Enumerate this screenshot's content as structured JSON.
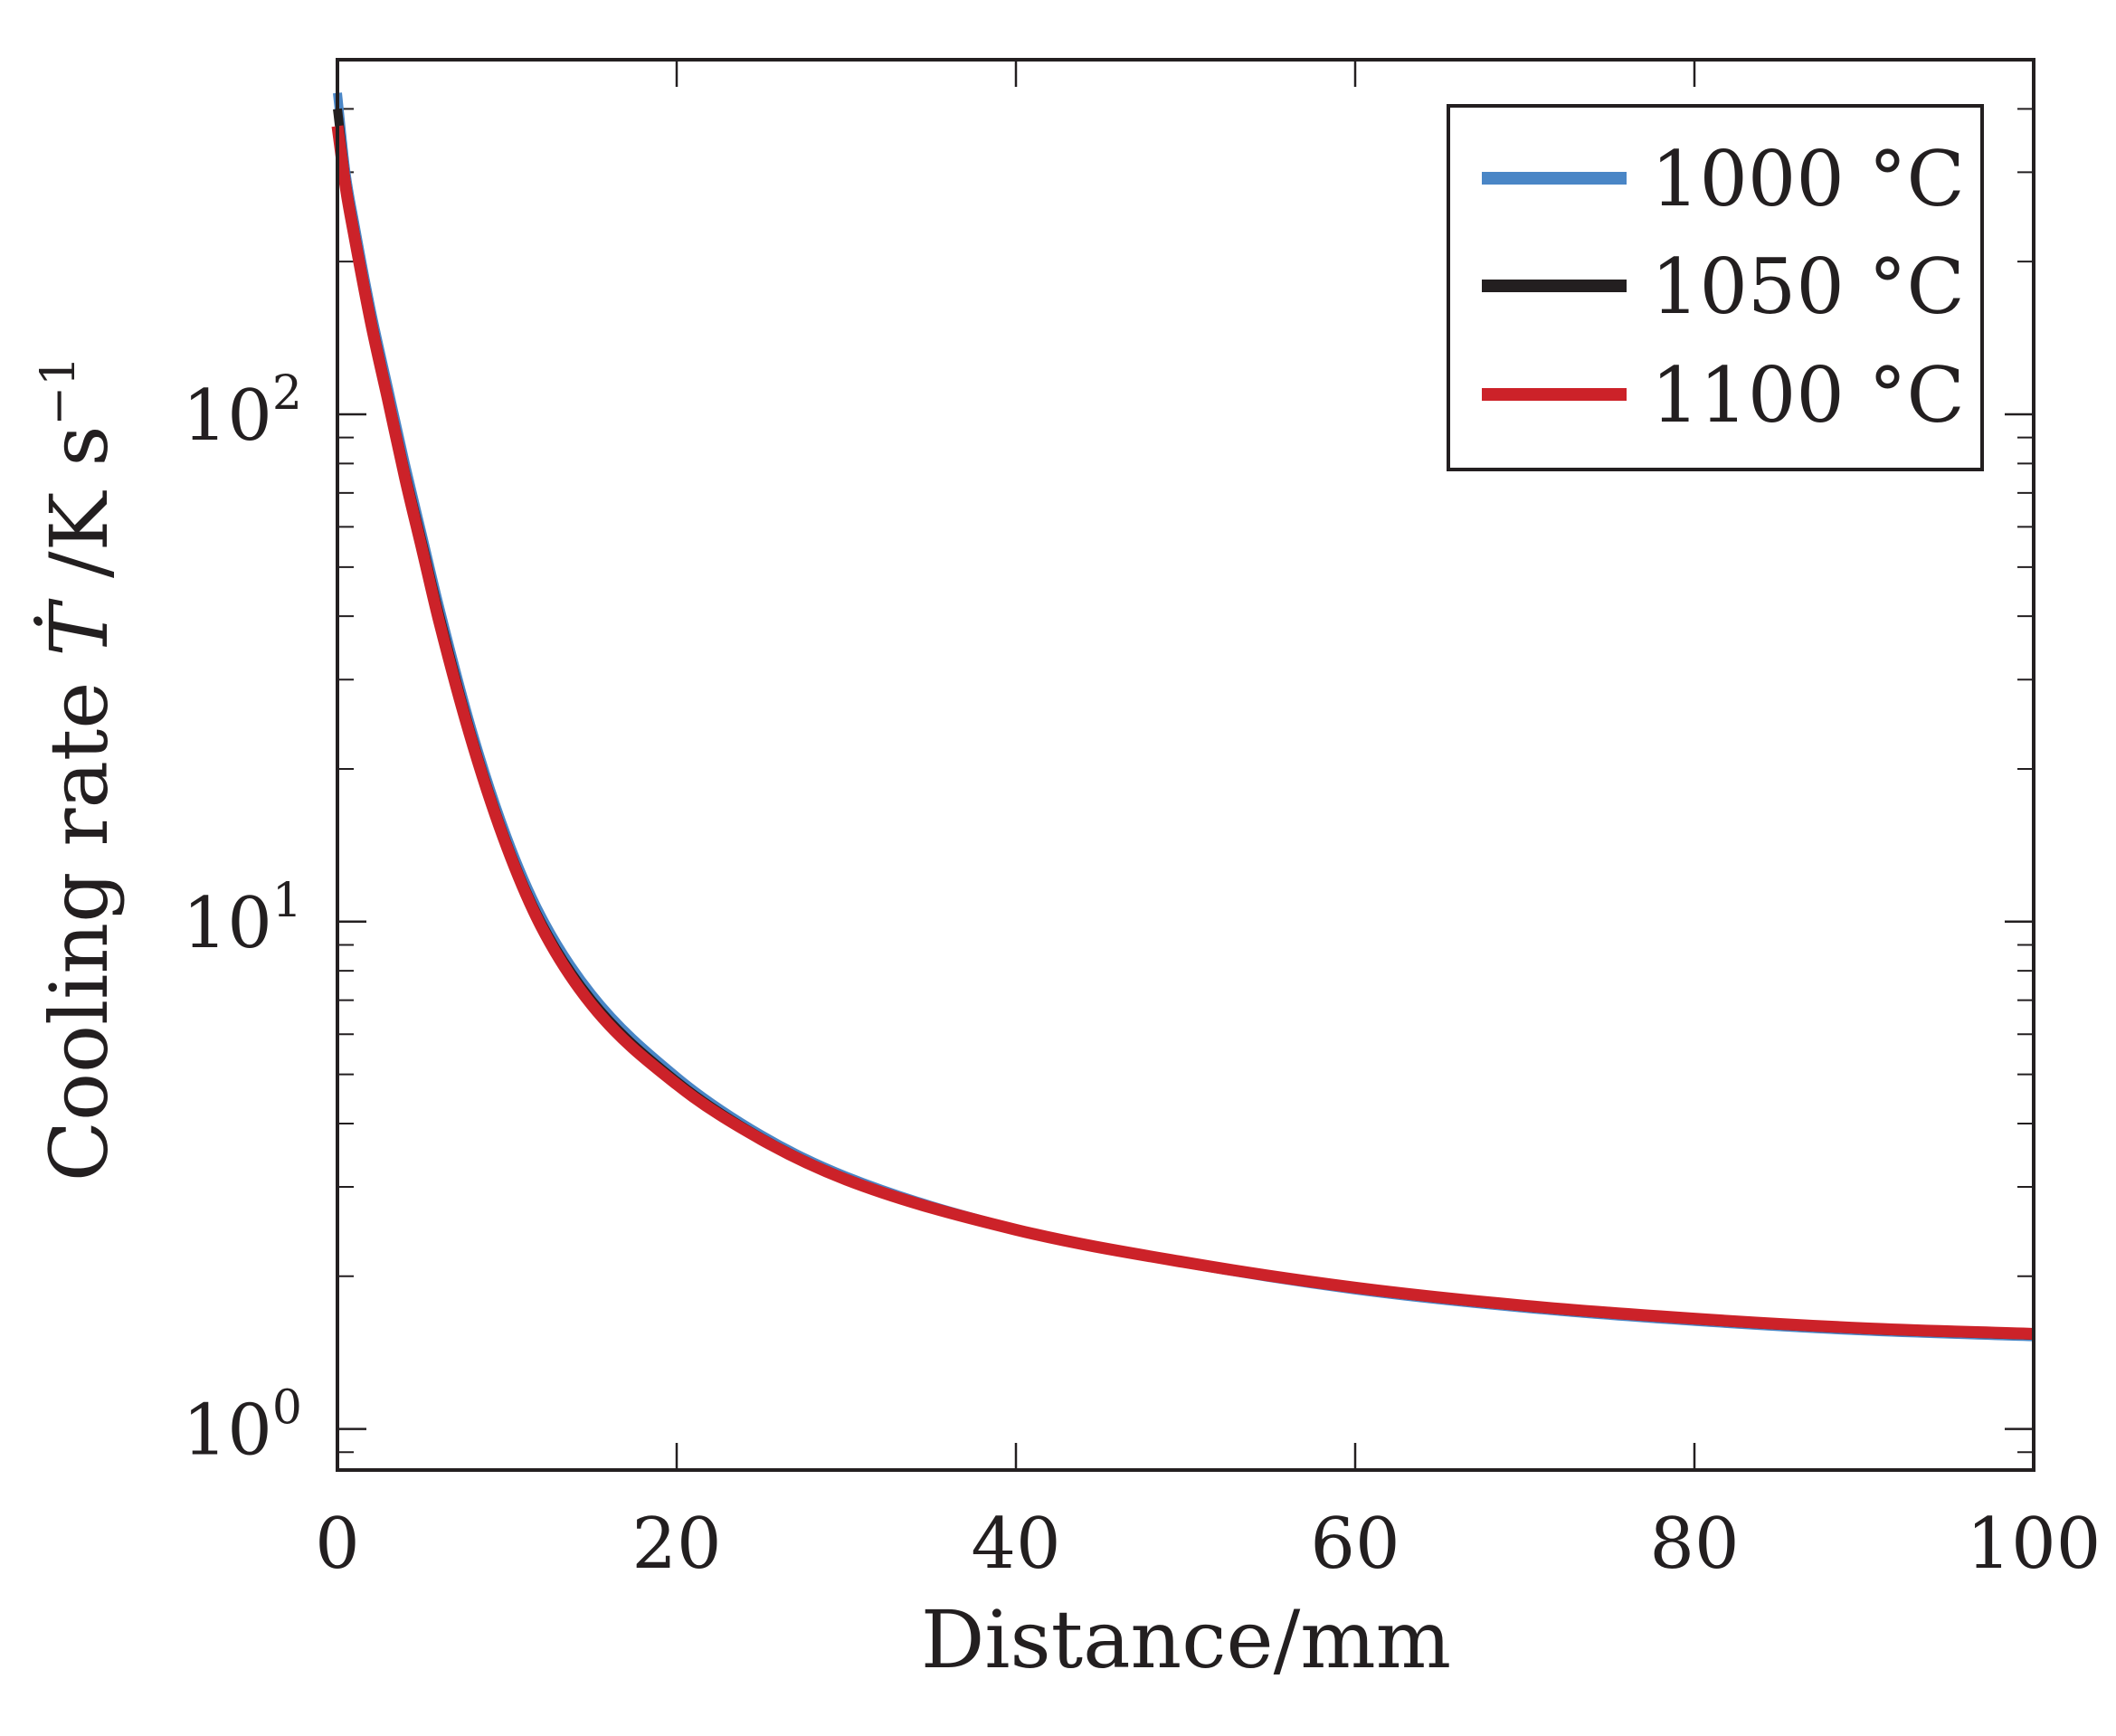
{
  "chart_data": {
    "type": "line",
    "title": "",
    "xlabel": "Distance/mm",
    "ylabel": {
      "main": "Cooling rate ",
      "symbol": "Ṫ",
      "unit": " /K s",
      "unit_exponent": "−1"
    },
    "xlim": [
      0,
      100
    ],
    "ylim": [
      0.83,
      500
    ],
    "yscale": "log",
    "grid": false,
    "legend_position": "top-right",
    "x_ticks": [
      {
        "value": 0,
        "label": "0"
      },
      {
        "value": 20,
        "label": "20"
      },
      {
        "value": 40,
        "label": "40"
      },
      {
        "value": 60,
        "label": "60"
      },
      {
        "value": 80,
        "label": "80"
      },
      {
        "value": 100,
        "label": "100"
      }
    ],
    "y_ticks": [
      {
        "value": 1,
        "base": "10",
        "exp": "0"
      },
      {
        "value": 10,
        "base": "10",
        "exp": "1"
      },
      {
        "value": 100,
        "base": "10",
        "exp": "2"
      }
    ],
    "x": [
      0,
      0.5,
      1,
      2,
      3,
      4,
      5,
      6,
      8,
      10,
      12,
      15,
      20,
      25,
      30,
      40,
      50,
      60,
      70,
      80,
      90,
      100
    ],
    "series": [
      {
        "name": "1000 °C",
        "color": "#4a86c6",
        "values": [
          430,
          300,
          240,
          160,
          113,
          80,
          58,
          42,
          23.5,
          14.7,
          10.3,
          7.2,
          4.95,
          3.8,
          3.15,
          2.48,
          2.12,
          1.88,
          1.73,
          1.63,
          1.56,
          1.52
        ]
      },
      {
        "name": "1050 °C",
        "color": "#231f20",
        "values": [
          400,
          290,
          232,
          155,
          109,
          77,
          56,
          40.5,
          22.8,
          14.3,
          10.0,
          7.0,
          4.85,
          3.75,
          3.12,
          2.47,
          2.12,
          1.89,
          1.74,
          1.64,
          1.57,
          1.53
        ]
      },
      {
        "name": "1100 °C",
        "color": "#cc2229",
        "values": [
          370,
          278,
          224,
          150,
          106,
          74.5,
          54,
          39,
          22.2,
          14.0,
          9.8,
          6.85,
          4.78,
          3.72,
          3.1,
          2.47,
          2.13,
          1.9,
          1.75,
          1.65,
          1.58,
          1.54
        ]
      }
    ]
  }
}
